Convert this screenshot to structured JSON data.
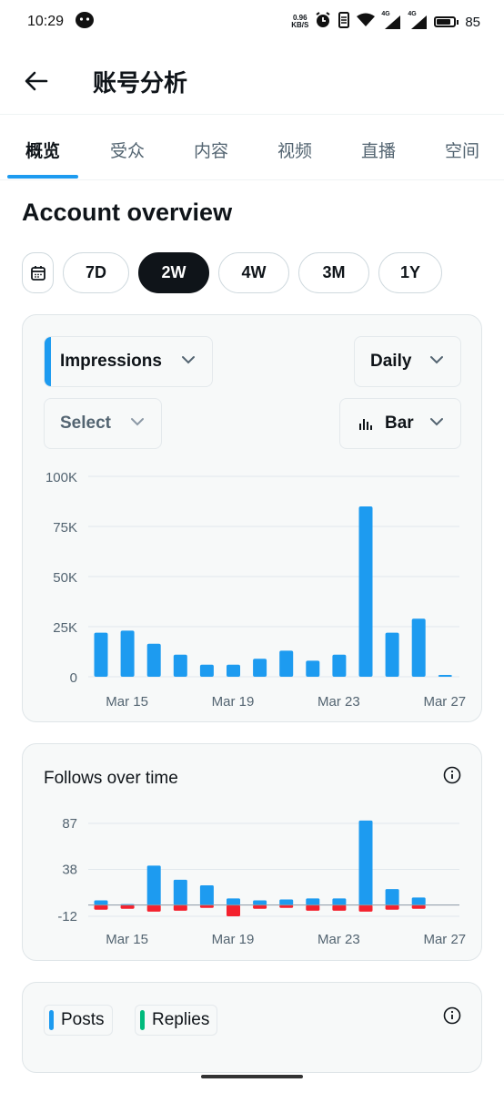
{
  "status": {
    "time": "10:29",
    "netspeed_value": "0.96",
    "netspeed_unit": "KB/S",
    "signal1_label": "4G",
    "signal2_label": "4G",
    "battery": "85",
    "icons": [
      "wechat-icon",
      "alarm-icon",
      "vibrate-icon",
      "wifi-icon",
      "signal-icon",
      "battery-icon"
    ]
  },
  "header": {
    "title": "账号分析"
  },
  "tabs": [
    {
      "label": "概览",
      "active": true
    },
    {
      "label": "受众",
      "active": false
    },
    {
      "label": "内容",
      "active": false
    },
    {
      "label": "视频",
      "active": false
    },
    {
      "label": "直播",
      "active": false
    },
    {
      "label": "空间",
      "active": false
    }
  ],
  "overview": {
    "title": "Account overview",
    "ranges": [
      "7D",
      "2W",
      "4W",
      "3M",
      "1Y"
    ],
    "active_range": "2W"
  },
  "impressions_card": {
    "metric_select": "Impressions",
    "interval_select": "Daily",
    "compare_select": "Select",
    "chart_type_select": "Bar"
  },
  "follows_card": {
    "title": "Follows over time"
  },
  "posts_card": {
    "legend": [
      "Posts",
      "Replies"
    ]
  },
  "colors": {
    "accent": "#1d9bf0",
    "negative": "#f4212e",
    "replies": "#00ba7c",
    "text": "#0f1419",
    "muted": "#536471"
  },
  "chart_data": [
    {
      "type": "bar",
      "title": "",
      "x": [
        "Mar 14",
        "Mar 15",
        "Mar 16",
        "Mar 17",
        "Mar 18",
        "Mar 19",
        "Mar 20",
        "Mar 21",
        "Mar 22",
        "Mar 23",
        "Mar 24",
        "Mar 25",
        "Mar 26",
        "Mar 27"
      ],
      "x_tick_labels": [
        "Mar 15",
        "Mar 19",
        "Mar 23",
        "Mar 27"
      ],
      "series": [
        {
          "name": "Impressions",
          "color": "#1d9bf0",
          "values": [
            22000,
            23000,
            16500,
            11000,
            6000,
            6000,
            9000,
            13000,
            8000,
            11000,
            85000,
            22000,
            29000,
            700
          ]
        }
      ],
      "y_ticks": [
        "0",
        "25K",
        "50K",
        "75K",
        "100K"
      ],
      "ylim": [
        0,
        100000
      ],
      "grid": true
    },
    {
      "type": "bar",
      "title": "Follows over time",
      "x": [
        "Mar 14",
        "Mar 15",
        "Mar 16",
        "Mar 17",
        "Mar 18",
        "Mar 19",
        "Mar 20",
        "Mar 21",
        "Mar 22",
        "Mar 23",
        "Mar 24",
        "Mar 25",
        "Mar 26",
        "Mar 27"
      ],
      "x_tick_labels": [
        "Mar 15",
        "Mar 19",
        "Mar 23",
        "Mar 27"
      ],
      "series": [
        {
          "color": "#1d9bf0",
          "values": [
            5,
            1,
            42,
            27,
            21,
            7,
            5,
            6,
            7,
            7,
            90,
            17,
            8,
            0
          ]
        },
        {
          "color": "#f4212e",
          "values": [
            -5,
            -4,
            -7,
            -6,
            -3,
            -12,
            -4,
            -3,
            -6,
            -6,
            -7,
            -5,
            -4,
            0
          ]
        }
      ],
      "y_ticks": [
        "-12",
        "38",
        "87"
      ],
      "ylim": [
        -12,
        87
      ],
      "grid": true
    }
  ]
}
